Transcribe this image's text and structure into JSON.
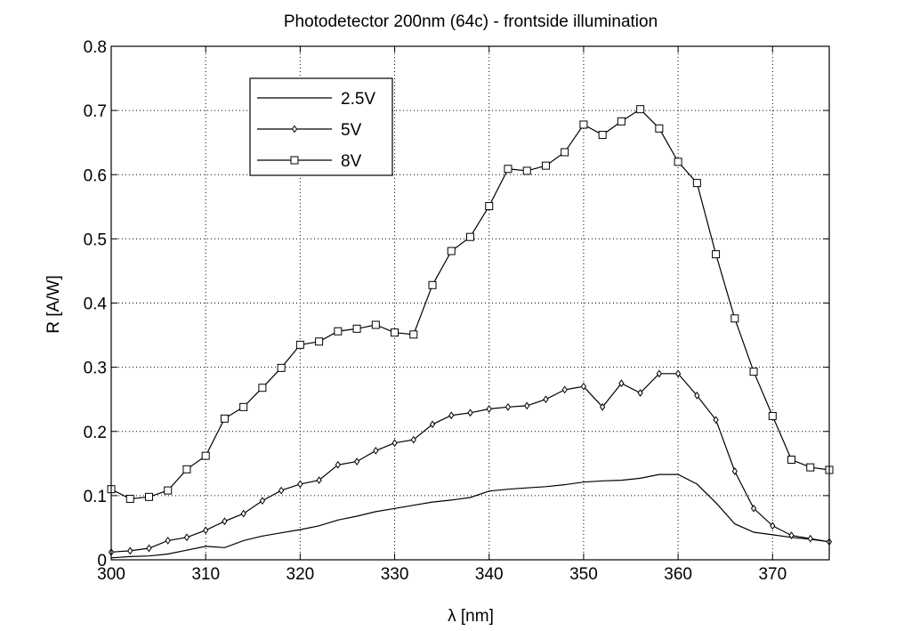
{
  "chart_data": {
    "type": "line",
    "title": "Photodetector 200nm (64c) - frontside illumination",
    "xlabel": "λ [nm]",
    "ylabel": "R [A/W]",
    "xlim": [
      300,
      376
    ],
    "ylim": [
      0,
      0.8
    ],
    "xticks": [
      300,
      310,
      320,
      330,
      340,
      350,
      360,
      370
    ],
    "xtick_labels": [
      "300",
      "310",
      "320",
      "330",
      "340",
      "350",
      "360",
      "370"
    ],
    "yticks": [
      0,
      0.1,
      0.2,
      0.3,
      0.4,
      0.5,
      0.6,
      0.7,
      0.8
    ],
    "ytick_labels": [
      "0",
      "0.1",
      "0.2",
      "0.3",
      "0.4",
      "0.5",
      "0.6",
      "0.7",
      "0.8"
    ],
    "grid": true,
    "legend_position": "top-left",
    "x": [
      300,
      302,
      304,
      306,
      308,
      310,
      312,
      314,
      316,
      318,
      320,
      322,
      324,
      326,
      328,
      330,
      332,
      334,
      336,
      338,
      340,
      342,
      344,
      346,
      348,
      350,
      352,
      354,
      356,
      358,
      360,
      362,
      364,
      366,
      368,
      370,
      372,
      374,
      376
    ],
    "series": [
      {
        "name": "2.5V",
        "marker": "none",
        "values": [
          0.003,
          0.005,
          0.006,
          0.009,
          0.015,
          0.021,
          0.019,
          0.03,
          0.037,
          0.042,
          0.047,
          0.053,
          0.062,
          0.068,
          0.075,
          0.08,
          0.085,
          0.09,
          0.093,
          0.097,
          0.107,
          0.11,
          0.112,
          0.114,
          0.117,
          0.121,
          0.123,
          0.124,
          0.127,
          0.133,
          0.133,
          0.118,
          0.089,
          0.056,
          0.043,
          0.039,
          0.035,
          0.032,
          0.028
        ]
      },
      {
        "name": "5V",
        "marker": "diamond",
        "values": [
          0.012,
          0.014,
          0.018,
          0.03,
          0.035,
          0.046,
          0.06,
          0.072,
          0.092,
          0.108,
          0.118,
          0.124,
          0.148,
          0.153,
          0.17,
          0.182,
          0.187,
          0.211,
          0.225,
          0.229,
          0.235,
          0.238,
          0.24,
          0.25,
          0.265,
          0.27,
          0.238,
          0.275,
          0.26,
          0.29,
          0.29,
          0.256,
          0.218,
          0.138,
          0.08,
          0.053,
          0.038,
          0.033,
          0.028
        ]
      },
      {
        "name": "8V",
        "marker": "square",
        "values": [
          0.11,
          0.095,
          0.098,
          0.108,
          0.141,
          0.162,
          0.22,
          0.238,
          0.268,
          0.299,
          0.335,
          0.34,
          0.356,
          0.36,
          0.366,
          0.354,
          0.351,
          0.428,
          0.481,
          0.503,
          0.551,
          0.609,
          0.606,
          0.614,
          0.635,
          0.678,
          0.662,
          0.683,
          0.702,
          0.672,
          0.62,
          0.587,
          0.476,
          0.376,
          0.293,
          0.224,
          0.156,
          0.144,
          0.14
        ]
      }
    ]
  }
}
